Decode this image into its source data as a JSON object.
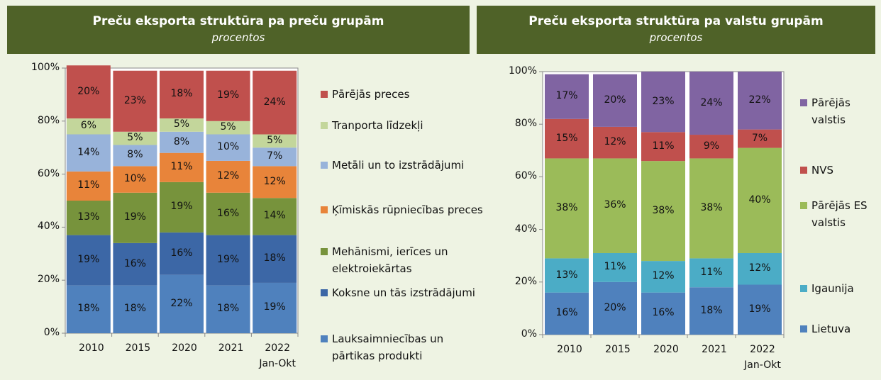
{
  "chart_data": [
    {
      "type": "stacked_bar",
      "title": "Preču eksporta struktūra pa preču grupām",
      "subtitle": "procentos",
      "categories": [
        "2010",
        "2015",
        "2020",
        "2021",
        "2022 Jan-Okt"
      ],
      "ylim": [
        0,
        100
      ],
      "yticks": [
        {
          "value": 0,
          "label": "0%"
        },
        {
          "value": 20,
          "label": "20%"
        },
        {
          "value": 40,
          "label": "40%"
        },
        {
          "value": 60,
          "label": "60%"
        },
        {
          "value": 80,
          "label": "80%"
        },
        {
          "value": 100,
          "label": "100%"
        }
      ],
      "series": [
        {
          "name": "Lauksaimniecības un pārtikas produkti",
          "color": "#4f81bd",
          "values": [
            18,
            18,
            22,
            18,
            19
          ],
          "value_labels": [
            "18%",
            "18%",
            "22%",
            "18%",
            "19%"
          ]
        },
        {
          "name": "Koksne un tās izstrādājumi",
          "color": "#3c67a6",
          "values": [
            19,
            16,
            16,
            19,
            18
          ],
          "value_labels": [
            "19%",
            "16%",
            "16%",
            "19%",
            "18%"
          ]
        },
        {
          "name": "Mehānismi, ierīces un elektroiekārtas",
          "color": "#77933c",
          "values": [
            13,
            19,
            19,
            16,
            14
          ],
          "value_labels": [
            "13%",
            "19%",
            "19%",
            "16%",
            "14%"
          ]
        },
        {
          "name": "Ķīmiskās rūpniecības preces",
          "color": "#e8843a",
          "values": [
            11,
            10,
            11,
            12,
            12
          ],
          "value_labels": [
            "11%",
            "10%",
            "11%",
            "12%",
            "12%"
          ]
        },
        {
          "name": "Metāli un to izstrādājumi",
          "color": "#98b3da",
          "values": [
            14,
            8,
            8,
            10,
            7
          ],
          "value_labels": [
            "14%",
            "8%",
            "8%",
            "10%",
            "7%"
          ]
        },
        {
          "name": "Tranporta līdzekļi",
          "color": "#c3d69b",
          "values": [
            6,
            5,
            5,
            5,
            5
          ],
          "value_labels": [
            "6%",
            "5%",
            "5%",
            "5%",
            "5%"
          ]
        },
        {
          "name": "Pārējās preces",
          "color": "#c0504d",
          "values": [
            20,
            23,
            18,
            19,
            24
          ],
          "value_labels": [
            "20%",
            "23%",
            "18%",
            "19%",
            "24%"
          ]
        }
      ]
    },
    {
      "type": "stacked_bar",
      "title": "Preču eksporta struktūra pa valstu grupām",
      "subtitle": "procentos",
      "categories": [
        "2010",
        "2015",
        "2020",
        "2021",
        "2022 Jan-Okt"
      ],
      "ylim": [
        0,
        100
      ],
      "yticks": [
        {
          "value": 0,
          "label": "0%"
        },
        {
          "value": 20,
          "label": "20%"
        },
        {
          "value": 40,
          "label": "40%"
        },
        {
          "value": 60,
          "label": "60%"
        },
        {
          "value": 80,
          "label": "80%"
        },
        {
          "value": 100,
          "label": "100%"
        }
      ],
      "series": [
        {
          "name": "Lietuva",
          "color": "#4f81bd",
          "values": [
            16,
            20,
            16,
            18,
            19
          ],
          "value_labels": [
            "16%",
            "20%",
            "16%",
            "18%",
            "19%"
          ]
        },
        {
          "name": "Igaunija",
          "color": "#4bacc6",
          "values": [
            13,
            11,
            12,
            11,
            12
          ],
          "value_labels": [
            "13%",
            "11%",
            "12%",
            "11%",
            "12%"
          ]
        },
        {
          "name": "Pārējās ES valstis",
          "color": "#9bbb59",
          "values": [
            38,
            36,
            38,
            38,
            40
          ],
          "value_labels": [
            "38%",
            "36%",
            "38%",
            "38%",
            "40%"
          ]
        },
        {
          "name": "NVS",
          "color": "#c0504d",
          "values": [
            15,
            12,
            11,
            9,
            7
          ],
          "value_labels": [
            "15%",
            "12%",
            "11%",
            "9%",
            "7%"
          ]
        },
        {
          "name": "Pārējās valstis",
          "color": "#8064a2",
          "values": [
            17,
            20,
            23,
            24,
            22
          ],
          "value_labels": [
            "17%",
            "20%",
            "23%",
            "24%",
            "22%"
          ]
        }
      ]
    }
  ]
}
